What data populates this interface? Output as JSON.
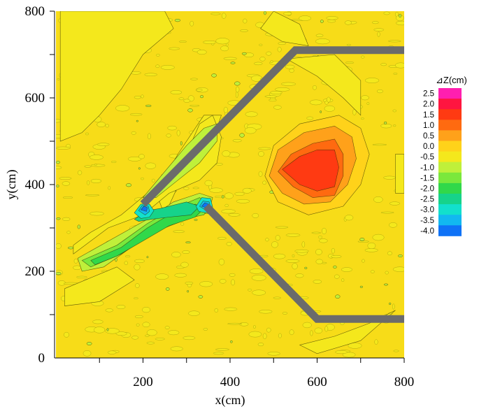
{
  "chart_data": {
    "type": "heatmap",
    "title": "",
    "xlabel": "x(cm)",
    "ylabel": "y(cm)",
    "xlim": [
      0,
      800
    ],
    "ylim": [
      0,
      800
    ],
    "x_ticks": [
      200,
      400,
      600,
      800
    ],
    "y_ticks": [
      0,
      200,
      400,
      600,
      800
    ],
    "colorbar": {
      "title": "⊿Z(cm)",
      "levels": [
        {
          "label": "2.5",
          "value": 2.5,
          "color": "#ff1fb0"
        },
        {
          "label": "2.0",
          "value": 2.0,
          "color": "#ff1540"
        },
        {
          "label": "1.5",
          "value": 1.5,
          "color": "#ff3a12"
        },
        {
          "label": "1.0",
          "value": 1.0,
          "color": "#ff6a10"
        },
        {
          "label": "0.5",
          "value": 0.5,
          "color": "#ffa11a"
        },
        {
          "label": "0.0",
          "value": 0.0,
          "color": "#ffd21a"
        },
        {
          "label": "-0.5",
          "value": -0.5,
          "color": "#f4e81c"
        },
        {
          "label": "-1.0",
          "value": -1.0,
          "color": "#bff03a"
        },
        {
          "label": "-1.5",
          "value": -1.5,
          "color": "#7ae83c"
        },
        {
          "label": "-2.0",
          "value": -2.0,
          "color": "#31d84a"
        },
        {
          "label": "-2.5",
          "value": -2.5,
          "color": "#16d38a"
        },
        {
          "label": "-3.0",
          "value": -3.0,
          "color": "#12e0cc"
        },
        {
          "label": "-3.5",
          "value": -3.5,
          "color": "#12b8f0"
        },
        {
          "label": "-4.0",
          "value": -4.0,
          "color": "#0f72f6"
        }
      ]
    },
    "features": {
      "erosion_channel": {
        "from": [
          120,
          230
        ],
        "to": [
          340,
          350
        ],
        "min_level": -4.0
      },
      "deposition_mound": {
        "center": [
          600,
          420
        ],
        "max_level": 1.5
      },
      "groyne_upper": [
        [
          200,
          355
        ],
        [
          550,
          710
        ],
        [
          800,
          710
        ]
      ],
      "groyne_lower": [
        [
          345,
          350
        ],
        [
          600,
          90
        ],
        [
          800,
          90
        ]
      ]
    }
  }
}
